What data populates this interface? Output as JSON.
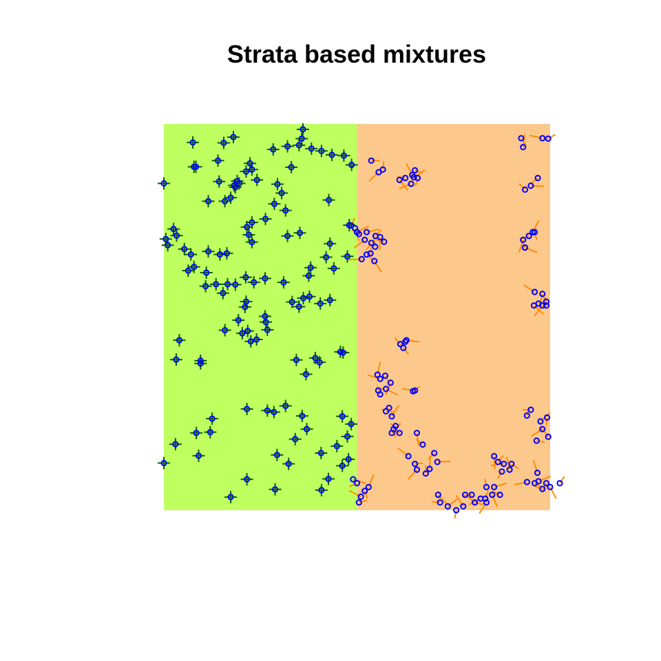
{
  "chart_data": {
    "type": "scatter",
    "title": "Strata based mixtures",
    "xlabel": "",
    "ylabel": "",
    "xlim": [
      0,
      1
    ],
    "ylim": [
      0,
      1
    ],
    "axes_shown": false,
    "grid": false,
    "strata": [
      {
        "name": "",
        "x_range": [
          0,
          0.5
        ],
        "color": "#bfff5f"
      },
      {
        "name": "",
        "x_range": [
          0.5,
          1
        ],
        "color": "#fcc88c"
      }
    ],
    "colors": {
      "points": "#0000ff",
      "left_segments": "#006400",
      "right_segments": "#ff8c00"
    },
    "series": [
      {
        "name": "",
        "stratum": 0,
        "marker": "cross-with-circle",
        "points": [
          [
            0.36,
            0.986
          ],
          [
            0.357,
            0.962
          ],
          [
            0.283,
            0.934
          ],
          [
            0.32,
            0.942
          ],
          [
            0.35,
            0.945
          ],
          [
            0.382,
            0.936
          ],
          [
            0.408,
            0.93
          ],
          [
            0.466,
            0.918
          ],
          [
            0.486,
            0.894
          ],
          [
            0.435,
            0.92
          ],
          [
            0.075,
            0.952
          ],
          [
            0.155,
            0.951
          ],
          [
            0.18,
            0.966
          ],
          [
            0.228,
            0.882
          ],
          [
            0.213,
            0.877
          ],
          [
            0.14,
            0.905
          ],
          [
            0.19,
            0.852
          ],
          [
            0.241,
            0.855
          ],
          [
            0.195,
            0.846
          ],
          [
            0.223,
            0.898
          ],
          [
            0.33,
            0.888
          ],
          [
            0.078,
            0.889
          ],
          [
            0.083,
            0.889
          ],
          [
            0.143,
            0.851
          ],
          [
            0.185,
            0.836
          ],
          [
            0.294,
            0.844
          ],
          [
            0.315,
            0.776
          ],
          [
            0.182,
            0.841
          ],
          [
            0.0,
            0.846
          ],
          [
            0.115,
            0.8
          ],
          [
            0.158,
            0.8
          ],
          [
            0.173,
            0.809
          ],
          [
            0.025,
            0.728
          ],
          [
            0.005,
            0.702
          ],
          [
            0.033,
            0.711
          ],
          [
            0.07,
            0.662
          ],
          [
            0.145,
            0.662
          ],
          [
            0.163,
            0.665
          ],
          [
            0.22,
            0.713
          ],
          [
            0.215,
            0.733
          ],
          [
            0.228,
            0.694
          ],
          [
            0.32,
            0.71
          ],
          [
            0.43,
            0.69
          ],
          [
            0.48,
            0.738
          ],
          [
            0.44,
            0.626
          ],
          [
            0.475,
            0.657
          ],
          [
            0.063,
            0.62
          ],
          [
            0.01,
            0.686
          ],
          [
            0.053,
            0.676
          ],
          [
            0.108,
            0.58
          ],
          [
            0.153,
            0.562
          ],
          [
            0.213,
            0.54
          ],
          [
            0.35,
            0.527
          ],
          [
            0.361,
            0.549
          ],
          [
            0.332,
            0.539
          ],
          [
            0.377,
            0.553
          ],
          [
            0.405,
            0.535
          ],
          [
            0.43,
            0.544
          ],
          [
            0.21,
            0.526
          ],
          [
            0.375,
            0.607
          ],
          [
            0.158,
            0.466
          ],
          [
            0.217,
            0.464
          ],
          [
            0.225,
            0.437
          ],
          [
            0.203,
            0.458
          ],
          [
            0.264,
            0.487
          ],
          [
            0.24,
            0.442
          ],
          [
            0.262,
            0.502
          ],
          [
            0.268,
            0.467
          ],
          [
            0.193,
            0.492
          ],
          [
            0.392,
            0.394
          ],
          [
            0.457,
            0.41
          ],
          [
            0.464,
            0.408
          ],
          [
            0.343,
            0.389
          ],
          [
            0.368,
            0.352
          ],
          [
            0.403,
            0.383
          ],
          [
            0.315,
            0.27
          ],
          [
            0.358,
            0.244
          ],
          [
            0.268,
            0.258
          ],
          [
            0.285,
            0.254
          ],
          [
            0.37,
            0.21
          ],
          [
            0.095,
            0.387
          ],
          [
            0.032,
            0.39
          ],
          [
            0.084,
            0.2
          ],
          [
            0.12,
            0.202
          ],
          [
            0.0,
            0.122
          ],
          [
            0.03,
            0.171
          ],
          [
            0.09,
            0.141
          ],
          [
            0.173,
            0.034
          ],
          [
            0.288,
            0.054
          ],
          [
            0.408,
            0.052
          ],
          [
            0.462,
            0.115
          ],
          [
            0.426,
            0.081
          ],
          [
            0.407,
            0.148
          ],
          [
            0.485,
            0.223
          ],
          [
            0.475,
            0.191
          ],
          [
            0.448,
            0.166
          ],
          [
            0.478,
            0.132
          ],
          [
            0.323,
            0.12
          ],
          [
            0.293,
            0.143
          ],
          [
            0.215,
            0.08
          ],
          [
            0.31,
            0.59
          ],
          [
            0.233,
            0.59
          ],
          [
            0.185,
            0.584
          ],
          [
            0.165,
            0.585
          ],
          [
            0.135,
            0.585
          ],
          [
            0.11,
            0.615
          ],
          [
            0.078,
            0.63
          ],
          [
            0.115,
            0.67
          ],
          [
            0.212,
            0.603
          ],
          [
            0.262,
            0.6
          ],
          [
            0.228,
            0.745
          ],
          [
            0.352,
            0.718
          ],
          [
            0.427,
            0.803
          ],
          [
            0.305,
            0.821
          ],
          [
            0.286,
            0.793
          ],
          [
            0.263,
            0.754
          ],
          [
            0.38,
            0.628
          ],
          [
            0.42,
            0.655
          ],
          [
            0.04,
            0.44
          ],
          [
            0.095,
            0.38
          ],
          [
            0.125,
            0.237
          ],
          [
            0.215,
            0.262
          ],
          [
            0.34,
            0.184
          ],
          [
            0.462,
            0.243
          ]
        ]
      },
      {
        "name": "",
        "stratum": 1,
        "marker": "circle",
        "points": [
          [
            0.537,
            0.905
          ],
          [
            0.556,
            0.875
          ],
          [
            0.567,
            0.882
          ],
          [
            0.61,
            0.855
          ],
          [
            0.625,
            0.86
          ],
          [
            0.647,
            0.862
          ],
          [
            0.657,
            0.86
          ],
          [
            0.643,
            0.868
          ],
          [
            0.65,
            0.88
          ],
          [
            0.64,
            0.845
          ],
          [
            0.485,
            0.737
          ],
          [
            0.495,
            0.73
          ],
          [
            0.505,
            0.715
          ],
          [
            0.525,
            0.72
          ],
          [
            0.537,
            0.692
          ],
          [
            0.547,
            0.682
          ],
          [
            0.525,
            0.662
          ],
          [
            0.512,
            0.65
          ],
          [
            0.548,
            0.71
          ],
          [
            0.56,
            0.707
          ],
          [
            0.612,
            0.43
          ],
          [
            0.628,
            0.44
          ],
          [
            0.625,
            0.436
          ],
          [
            0.553,
            0.351
          ],
          [
            0.573,
            0.348
          ],
          [
            0.56,
            0.34
          ],
          [
            0.555,
            0.31
          ],
          [
            0.587,
            0.33
          ],
          [
            0.56,
            0.3
          ],
          [
            0.575,
            0.314
          ],
          [
            0.583,
            0.265
          ],
          [
            0.59,
            0.243
          ],
          [
            0.595,
            0.21
          ],
          [
            0.633,
            0.14
          ],
          [
            0.65,
            0.12
          ],
          [
            0.655,
            0.105
          ],
          [
            0.678,
            0.095
          ],
          [
            0.71,
            0.04
          ],
          [
            0.715,
            0.02
          ],
          [
            0.735,
            0.01
          ],
          [
            0.757,
            0.0
          ],
          [
            0.775,
            0.01
          ],
          [
            0.805,
            0.02
          ],
          [
            0.82,
            0.03
          ],
          [
            0.832,
            0.03
          ],
          [
            0.85,
            0.04
          ],
          [
            0.87,
            0.04
          ],
          [
            0.855,
            0.06
          ],
          [
            0.875,
            0.1
          ],
          [
            0.895,
            0.105
          ],
          [
            0.9,
            0.12
          ],
          [
            0.88,
            0.12
          ],
          [
            0.865,
            0.125
          ],
          [
            0.855,
            0.14
          ],
          [
            0.935,
            0.83
          ],
          [
            0.95,
            0.84
          ],
          [
            0.968,
            0.86
          ],
          [
            0.93,
            0.94
          ],
          [
            0.925,
            0.963
          ],
          [
            0.98,
            0.963
          ],
          [
            0.995,
            0.962
          ],
          [
            0.93,
            0.7
          ],
          [
            0.935,
            0.68
          ],
          [
            0.935,
            0.68
          ],
          [
            0.945,
            0.71
          ],
          [
            0.955,
            0.72
          ],
          [
            0.96,
            0.72
          ],
          [
            0.96,
            0.565
          ],
          [
            0.97,
            0.535
          ],
          [
            0.98,
            0.53
          ],
          [
            0.99,
            0.53
          ],
          [
            0.958,
            0.53
          ],
          [
            0.95,
            0.26
          ],
          [
            0.975,
            0.23
          ],
          [
            0.992,
            0.24
          ],
          [
            0.995,
            0.19
          ],
          [
            0.965,
            0.18
          ],
          [
            0.98,
            0.21
          ],
          [
            0.94,
            0.245
          ],
          [
            1.0,
            0.06
          ],
          [
            0.98,
            0.055
          ],
          [
            0.97,
            0.075
          ],
          [
            0.99,
            0.07
          ],
          [
            0.967,
            0.097
          ],
          [
            0.96,
            0.07
          ],
          [
            0.94,
            0.073
          ],
          [
            1.025,
            0.07
          ],
          [
            0.655,
            0.2
          ],
          [
            0.67,
            0.17
          ],
          [
            0.708,
            0.125
          ],
          [
            0.7,
            0.148
          ],
          [
            0.688,
            0.107
          ],
          [
            0.62,
            0.42
          ],
          [
            0.65,
            0.31
          ],
          [
            0.645,
            0.308
          ],
          [
            0.98,
            0.56
          ],
          [
            0.99,
            0.54
          ],
          [
            0.49,
            0.08
          ],
          [
            0.5,
            0.07
          ],
          [
            0.53,
            0.06
          ],
          [
            0.52,
            0.05
          ],
          [
            0.51,
            0.035
          ],
          [
            0.505,
            0.02
          ],
          [
            0.835,
            0.02
          ],
          [
            0.835,
            0.06
          ],
          [
            0.78,
            0.04
          ],
          [
            0.797,
            0.04
          ],
          [
            0.59,
            0.2
          ],
          [
            0.6,
            0.218
          ],
          [
            0.61,
            0.2
          ],
          [
            0.575,
            0.256
          ],
          [
            0.52,
            0.7
          ],
          [
            0.535,
            0.665
          ],
          [
            0.545,
            0.645
          ],
          [
            0.57,
            0.695
          ],
          [
            0.5,
            0.72
          ]
        ]
      }
    ]
  }
}
